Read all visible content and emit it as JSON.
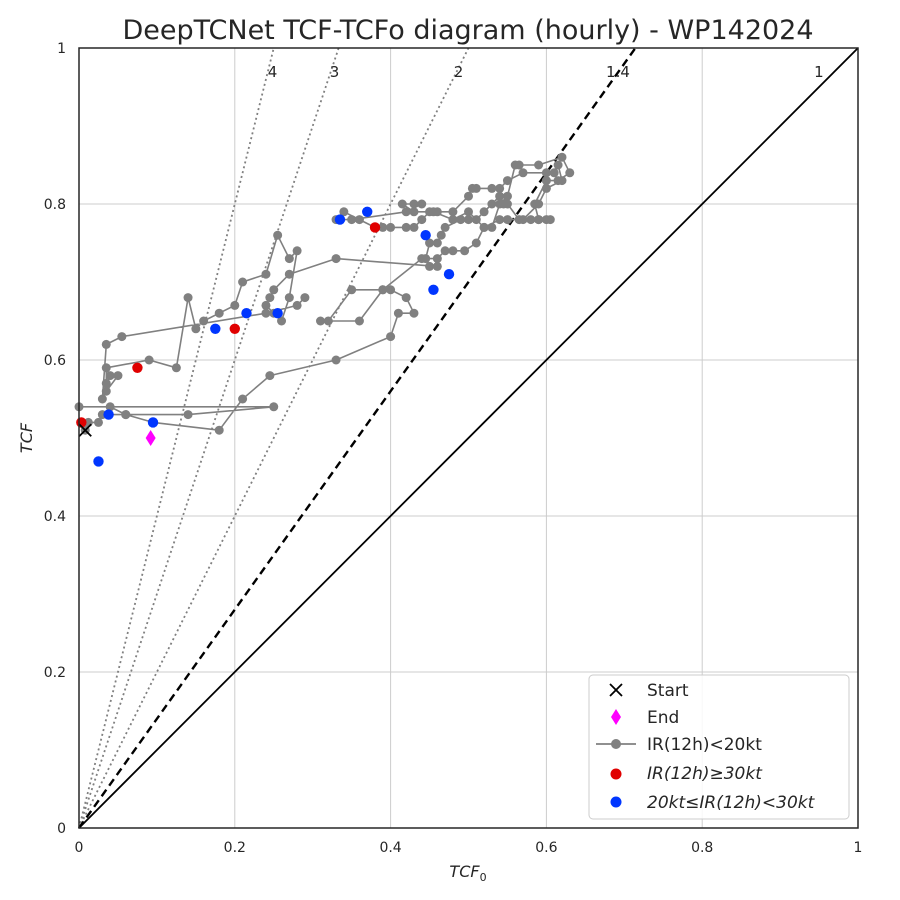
{
  "chart_data": {
    "type": "scatter",
    "title": "DeepTCNet TCF-TCFo diagram (hourly) - WP142024",
    "xlabel": "TCF",
    "xlabel_sub": "0",
    "ylabel": "TCF",
    "xlim": [
      0,
      1
    ],
    "ylim": [
      0,
      1
    ],
    "grid": true,
    "x_ticks": [
      "0",
      "0.2",
      "0.4",
      "0.6",
      "0.8",
      "1"
    ],
    "y_ticks": [
      "0",
      "0.2",
      "0.4",
      "0.6",
      "0.8",
      "1"
    ],
    "ratio_lines": [
      {
        "label": "4",
        "slope": 4,
        "style": "dotted",
        "color": "#808080"
      },
      {
        "label": "3",
        "slope": 3,
        "style": "dotted",
        "color": "#808080"
      },
      {
        "label": "2",
        "slope": 2,
        "style": "dotted",
        "color": "#808080"
      },
      {
        "label": "1.4",
        "slope": 1.4,
        "style": "dashed",
        "color": "#000000"
      },
      {
        "label": "1",
        "slope": 1,
        "style": "solid",
        "color": "#000000"
      }
    ],
    "series": [
      {
        "name": "IR(12h)<20kt",
        "color": "#808080",
        "points": [
          [
            0.008,
            0.51
          ],
          [
            0.012,
            0.52
          ],
          [
            0.025,
            0.52
          ],
          [
            0.03,
            0.53
          ],
          [
            0.06,
            0.53
          ],
          [
            0.14,
            0.53
          ],
          [
            0.25,
            0.54
          ],
          [
            0.0,
            0.54
          ],
          [
            0.04,
            0.54
          ],
          [
            0.06,
            0.53
          ],
          [
            0.095,
            0.52
          ],
          [
            0.18,
            0.51
          ],
          [
            0.21,
            0.55
          ],
          [
            0.245,
            0.58
          ],
          [
            0.33,
            0.6
          ],
          [
            0.4,
            0.63
          ],
          [
            0.41,
            0.66
          ],
          [
            0.43,
            0.66
          ],
          [
            0.42,
            0.68
          ],
          [
            0.4,
            0.69
          ],
          [
            0.39,
            0.69
          ],
          [
            0.36,
            0.65
          ],
          [
            0.31,
            0.65
          ],
          [
            0.32,
            0.65
          ],
          [
            0.35,
            0.69
          ],
          [
            0.39,
            0.69
          ],
          [
            0.44,
            0.73
          ],
          [
            0.46,
            0.73
          ],
          [
            0.47,
            0.74
          ],
          [
            0.48,
            0.74
          ],
          [
            0.495,
            0.74
          ],
          [
            0.51,
            0.75
          ],
          [
            0.52,
            0.77
          ],
          [
            0.54,
            0.78
          ],
          [
            0.55,
            0.78
          ],
          [
            0.57,
            0.78
          ],
          [
            0.59,
            0.8
          ],
          [
            0.6,
            0.82
          ],
          [
            0.62,
            0.83
          ],
          [
            0.615,
            0.85
          ],
          [
            0.61,
            0.84
          ],
          [
            0.6,
            0.84
          ],
          [
            0.57,
            0.84
          ],
          [
            0.55,
            0.83
          ],
          [
            0.54,
            0.82
          ],
          [
            0.53,
            0.82
          ],
          [
            0.51,
            0.82
          ],
          [
            0.505,
            0.82
          ],
          [
            0.5,
            0.81
          ],
          [
            0.48,
            0.79
          ],
          [
            0.46,
            0.79
          ],
          [
            0.45,
            0.79
          ],
          [
            0.44,
            0.78
          ],
          [
            0.43,
            0.77
          ],
          [
            0.42,
            0.77
          ],
          [
            0.4,
            0.77
          ],
          [
            0.39,
            0.77
          ],
          [
            0.38,
            0.77
          ],
          [
            0.36,
            0.78
          ],
          [
            0.34,
            0.79
          ],
          [
            0.33,
            0.78
          ],
          [
            0.35,
            0.78
          ],
          [
            0.42,
            0.79
          ],
          [
            0.44,
            0.8
          ],
          [
            0.43,
            0.8
          ],
          [
            0.415,
            0.8
          ],
          [
            0.43,
            0.79
          ],
          [
            0.455,
            0.79
          ],
          [
            0.48,
            0.78
          ],
          [
            0.5,
            0.79
          ],
          [
            0.52,
            0.77
          ],
          [
            0.53,
            0.77
          ],
          [
            0.54,
            0.8
          ],
          [
            0.55,
            0.81
          ],
          [
            0.56,
            0.85
          ],
          [
            0.565,
            0.85
          ],
          [
            0.59,
            0.85
          ],
          [
            0.62,
            0.86
          ],
          [
            0.63,
            0.84
          ],
          [
            0.615,
            0.83
          ],
          [
            0.6,
            0.83
          ],
          [
            0.585,
            0.8
          ],
          [
            0.59,
            0.78
          ],
          [
            0.6,
            0.78
          ],
          [
            0.605,
            0.78
          ],
          [
            0.59,
            0.78
          ],
          [
            0.58,
            0.78
          ],
          [
            0.565,
            0.78
          ],
          [
            0.55,
            0.8
          ],
          [
            0.545,
            0.8
          ],
          [
            0.54,
            0.81
          ],
          [
            0.53,
            0.8
          ],
          [
            0.52,
            0.79
          ],
          [
            0.51,
            0.78
          ],
          [
            0.5,
            0.78
          ],
          [
            0.49,
            0.78
          ],
          [
            0.47,
            0.77
          ],
          [
            0.465,
            0.76
          ],
          [
            0.46,
            0.75
          ],
          [
            0.45,
            0.75
          ],
          [
            0.445,
            0.73
          ],
          [
            0.45,
            0.72
          ],
          [
            0.46,
            0.72
          ],
          [
            0.33,
            0.73
          ],
          [
            0.27,
            0.71
          ],
          [
            0.25,
            0.69
          ],
          [
            0.245,
            0.68
          ],
          [
            0.24,
            0.67
          ],
          [
            0.25,
            0.66
          ],
          [
            0.26,
            0.65
          ],
          [
            0.27,
            0.68
          ],
          [
            0.28,
            0.74
          ],
          [
            0.27,
            0.73
          ],
          [
            0.255,
            0.76
          ],
          [
            0.24,
            0.71
          ],
          [
            0.21,
            0.7
          ],
          [
            0.2,
            0.67
          ],
          [
            0.18,
            0.66
          ],
          [
            0.16,
            0.65
          ],
          [
            0.15,
            0.64
          ],
          [
            0.14,
            0.68
          ],
          [
            0.125,
            0.59
          ],
          [
            0.09,
            0.6
          ],
          [
            0.035,
            0.59
          ],
          [
            0.035,
            0.57
          ],
          [
            0.04,
            0.58
          ],
          [
            0.05,
            0.58
          ],
          [
            0.035,
            0.56
          ],
          [
            0.03,
            0.55
          ],
          [
            0.035,
            0.62
          ],
          [
            0.055,
            0.63
          ],
          [
            0.24,
            0.66
          ],
          [
            0.28,
            0.67
          ],
          [
            0.29,
            0.68
          ]
        ]
      },
      {
        "name": "IR(12h)≥30kt",
        "color": "#e00000",
        "points": [
          [
            0.003,
            0.52
          ],
          [
            0.075,
            0.59
          ],
          [
            0.2,
            0.64
          ],
          [
            0.38,
            0.77
          ]
        ]
      },
      {
        "name": "20kt≤IR(12h)<30kt",
        "color": "#0036ff",
        "points": [
          [
            0.025,
            0.47
          ],
          [
            0.038,
            0.53
          ],
          [
            0.095,
            0.52
          ],
          [
            0.175,
            0.64
          ],
          [
            0.215,
            0.66
          ],
          [
            0.255,
            0.66
          ],
          [
            0.335,
            0.78
          ],
          [
            0.37,
            0.79
          ],
          [
            0.445,
            0.76
          ],
          [
            0.455,
            0.69
          ],
          [
            0.475,
            0.71
          ]
        ]
      }
    ],
    "start": {
      "name": "Start",
      "x": 0.008,
      "y": 0.51
    },
    "end": {
      "name": "End",
      "x": 0.092,
      "y": 0.5,
      "color": "#ff00ff"
    },
    "legend": {
      "placement": "lower-right",
      "entries": [
        {
          "label": "Start"
        },
        {
          "label": "End"
        },
        {
          "label": "IR(12h)<20kt"
        },
        {
          "label": "IR(12h)≥30kt"
        },
        {
          "label": "20kt≤IR(12h)<30kt"
        }
      ]
    }
  }
}
